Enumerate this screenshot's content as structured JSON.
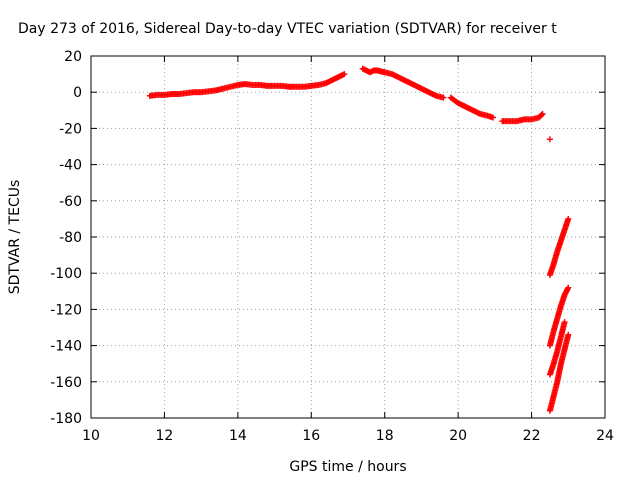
{
  "chart_data": {
    "type": "scatter",
    "title": "Day 273 of 2016, Sidereal Day-to-day VTEC variation (SDTVAR) for receiver t",
    "xlabel": "GPS time / hours",
    "ylabel": "SDTVAR / TECUs",
    "xlim": [
      10,
      24
    ],
    "ylim": [
      -180,
      20
    ],
    "xticks": [
      "10",
      "12",
      "14",
      "16",
      "18",
      "20",
      "22",
      "24"
    ],
    "yticks": [
      "20",
      "0",
      "-20",
      "-40",
      "-60",
      "-80",
      "-100",
      "-120",
      "-140",
      "-160",
      "-180"
    ],
    "grid": true,
    "legend": "none",
    "marker": "plus",
    "color": "#ff0000",
    "segments": [
      {
        "x": [
          11.6,
          11.8,
          12.0,
          12.2,
          12.4,
          12.6,
          12.8,
          13.0,
          13.2,
          13.4,
          13.6,
          13.8,
          14.0,
          14.2,
          14.4,
          14.6,
          14.8,
          15.0,
          15.2,
          15.4,
          15.6,
          15.8,
          16.0,
          16.2,
          16.4,
          16.6,
          16.8,
          16.9
        ],
        "y": [
          -2,
          -1.5,
          -1.5,
          -1,
          -1,
          -0.5,
          0,
          0,
          0.5,
          1,
          2,
          3,
          4,
          4.5,
          4,
          4,
          3.5,
          3.5,
          3.5,
          3,
          3,
          3,
          3.5,
          4,
          5,
          7,
          9,
          10
        ]
      },
      {
        "x": [
          17.4,
          17.5,
          17.6,
          17.7,
          17.8,
          17.9,
          18.0,
          18.2,
          18.4,
          18.6,
          18.8,
          19.0,
          19.2,
          19.4,
          19.6
        ],
        "y": [
          13,
          12,
          11,
          12,
          12,
          11.5,
          11,
          10,
          8,
          6,
          4,
          2,
          0,
          -2,
          -3
        ]
      },
      {
        "x": [
          19.8,
          20.0,
          20.2,
          20.4,
          20.6,
          20.8,
          20.95
        ],
        "y": [
          -3,
          -6,
          -8,
          -10,
          -12,
          -13,
          -14
        ]
      },
      {
        "x": [
          21.2,
          21.4,
          21.6,
          21.8,
          22.0,
          22.2,
          22.3
        ],
        "y": [
          -16,
          -16,
          -16,
          -15,
          -15,
          -14,
          -12
        ]
      },
      {
        "x": [
          22.5
        ],
        "y": [
          -26
        ]
      },
      {
        "x": [
          22.5,
          22.6,
          22.7,
          22.8,
          22.9,
          23.0
        ],
        "y": [
          -101,
          -95,
          -88,
          -82,
          -76,
          -70
        ]
      },
      {
        "x": [
          22.5,
          22.6,
          22.7,
          22.8,
          22.9,
          23.0
        ],
        "y": [
          -140,
          -132,
          -125,
          -118,
          -112,
          -108
        ]
      },
      {
        "x": [
          22.5,
          22.6,
          22.7,
          22.8,
          22.9
        ],
        "y": [
          -156,
          -150,
          -143,
          -135,
          -127
        ]
      },
      {
        "x": [
          22.5,
          22.6,
          22.7,
          22.8,
          22.9,
          23.0
        ],
        "y": [
          -176,
          -168,
          -160,
          -150,
          -142,
          -134
        ]
      }
    ]
  }
}
